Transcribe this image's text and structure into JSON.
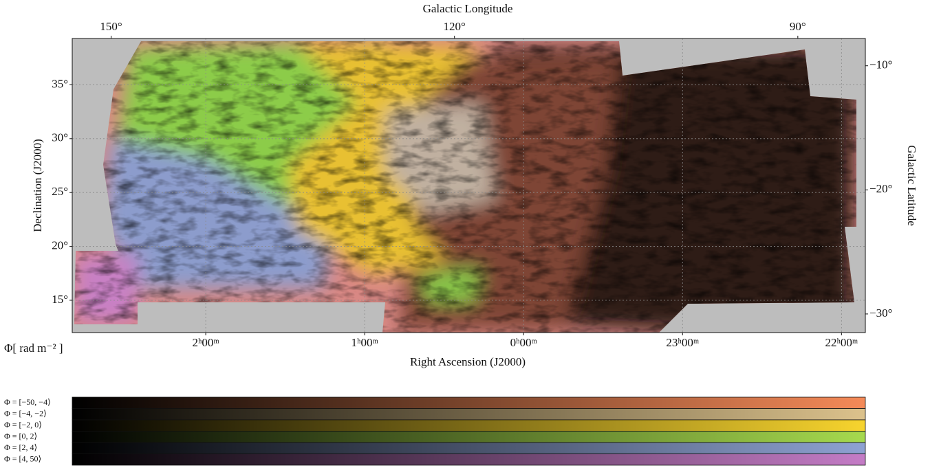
{
  "chart_data": {
    "type": "skymap",
    "x_label": "Right Ascension (J2000)",
    "y_label": "Declination (J2000)",
    "top_label": "Galactic Longitude",
    "right_label": "Galactic Latitude",
    "xlim": [
      2.84,
      21.85
    ],
    "xticks": [
      {
        "value": 2,
        "label": "2ʰ00ᵐ"
      },
      {
        "value": 1,
        "label": "1ʰ00ᵐ"
      },
      {
        "value": 0,
        "label": "0ʰ00ᵐ"
      },
      {
        "value": 23,
        "label": "23ʰ00ᵐ"
      },
      {
        "value": 22,
        "label": "22ʰ00ᵐ"
      }
    ],
    "ylim": [
      12.0,
      39.3
    ],
    "yticks": [
      {
        "value": 15,
        "label": "15°"
      },
      {
        "value": 20,
        "label": "20°"
      },
      {
        "value": 25,
        "label": "25°"
      },
      {
        "value": 30,
        "label": "30°"
      },
      {
        "value": 35,
        "label": "35°"
      }
    ],
    "toplim": [
      153.4,
      84.1
    ],
    "topticks": [
      {
        "value": 150,
        "label": "150°"
      },
      {
        "value": 120,
        "label": "120°"
      },
      {
        "value": 90,
        "label": "90°"
      }
    ],
    "rightlim": [
      -7.8,
      -31.5
    ],
    "rightticks": [
      {
        "value": -10,
        "label": "−10°"
      },
      {
        "value": -20,
        "label": "−20°"
      },
      {
        "value": -30,
        "label": "−30°"
      }
    ],
    "grid": true,
    "colorbar_label": "Φ[ rad m⁻² ]",
    "colorbar": [
      {
        "name": "Φ = [−50, −4⟩",
        "color": "#f58a58"
      },
      {
        "name": "Φ = [−4, −2⟩",
        "color": "#dcc28c"
      },
      {
        "name": "Φ = [−2, 0⟩",
        "color": "#f7d42e"
      },
      {
        "name": "Φ = [0, 2⟩",
        "color": "#a6da4e"
      },
      {
        "name": "Φ = [2, 4⟩",
        "color": "#8ea2d2"
      },
      {
        "name": "Φ = [4, 50⟩",
        "color": "#c47cc6"
      }
    ]
  }
}
